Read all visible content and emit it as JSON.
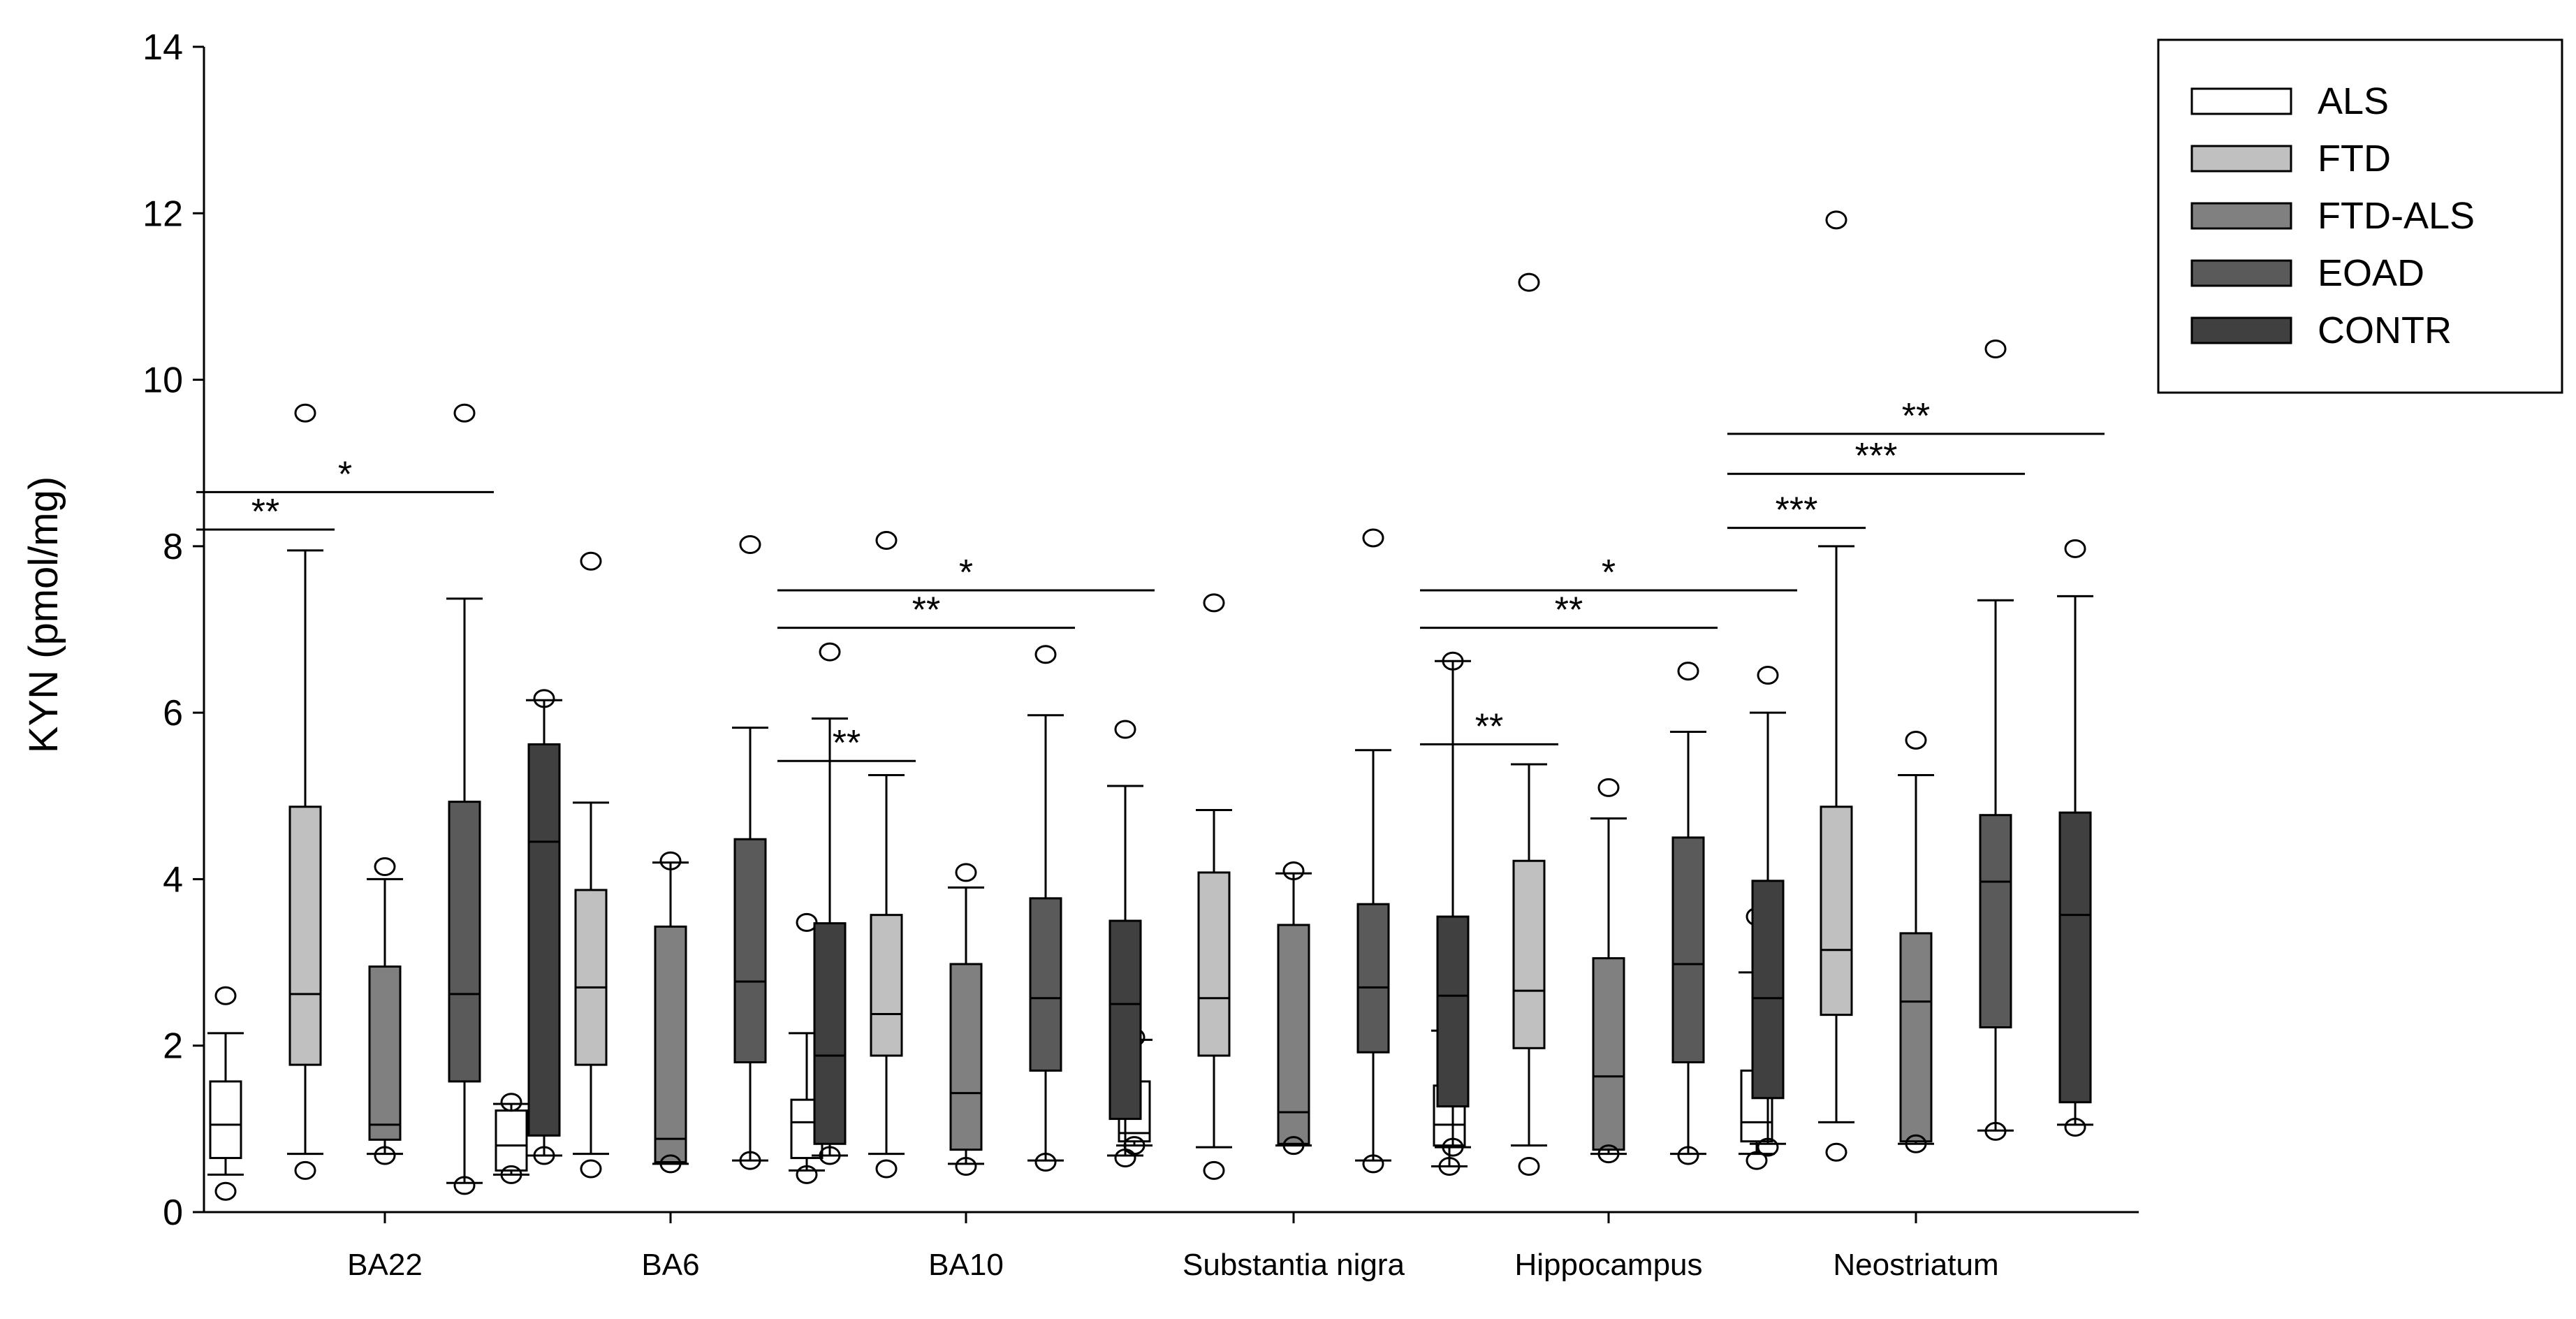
{
  "chart_data": {
    "type": "boxplot",
    "title": "",
    "xlabel": "",
    "ylabel": "KYN (pmol/mg)",
    "ylim": [
      0,
      14
    ],
    "yticks": [
      0,
      2,
      4,
      6,
      8,
      10,
      12,
      14
    ],
    "grid": false,
    "legend_position": "top-right",
    "categories": [
      "BA22",
      "BA6",
      "BA10",
      "Substantia nigra",
      "Hippocampus",
      "Neostriatum"
    ],
    "series": [
      {
        "name": "ALS",
        "color": "#ffffff",
        "boxes": [
          {
            "whisker_low": 0.45,
            "q1": 0.65,
            "median": 1.05,
            "q3": 1.57,
            "whisker_high": 2.15,
            "outliers": [
              2.6,
              0.25
            ]
          },
          {
            "whisker_low": 0.45,
            "q1": 0.5,
            "median": 0.8,
            "q3": 1.22,
            "whisker_high": 1.3,
            "outliers": [
              1.32,
              0.45
            ]
          },
          {
            "whisker_low": 0.5,
            "q1": 0.65,
            "median": 1.08,
            "q3": 1.35,
            "whisker_high": 2.15,
            "outliers": [
              3.48,
              0.45
            ]
          },
          {
            "whisker_low": 0.8,
            "q1": 0.85,
            "median": 0.95,
            "q3": 1.57,
            "whisker_high": 2.07,
            "outliers": [
              2.1,
              0.8
            ]
          },
          {
            "whisker_low": 0.55,
            "q1": 0.8,
            "median": 1.05,
            "q3": 1.52,
            "whisker_high": 2.18,
            "outliers": [
              2.78,
              0.55
            ]
          },
          {
            "whisker_low": 0.7,
            "q1": 0.85,
            "median": 1.08,
            "q3": 1.7,
            "whisker_high": 2.88,
            "outliers": [
              3.55,
              0.62
            ]
          }
        ]
      },
      {
        "name": "FTD",
        "color": "#c0c0c0",
        "boxes": [
          {
            "whisker_low": 0.7,
            "q1": 1.77,
            "median": 2.62,
            "q3": 4.87,
            "whisker_high": 7.95,
            "outliers": [
              9.6,
              0.5
            ]
          },
          {
            "whisker_low": 0.7,
            "q1": 1.77,
            "median": 2.7,
            "q3": 3.87,
            "whisker_high": 4.92,
            "outliers": [
              7.82,
              0.52
            ]
          },
          {
            "whisker_low": 0.7,
            "q1": 1.88,
            "median": 2.38,
            "q3": 3.57,
            "whisker_high": 5.25,
            "outliers": [
              8.07,
              0.52
            ]
          },
          {
            "whisker_low": 0.78,
            "q1": 1.88,
            "median": 2.57,
            "q3": 4.08,
            "whisker_high": 4.83,
            "outliers": [
              7.32,
              0.5
            ]
          },
          {
            "whisker_low": 0.8,
            "q1": 1.97,
            "median": 2.66,
            "q3": 4.22,
            "whisker_high": 5.38,
            "outliers": [
              11.17,
              0.55
            ]
          },
          {
            "whisker_low": 1.08,
            "q1": 2.37,
            "median": 3.15,
            "q3": 4.87,
            "whisker_high": 8.0,
            "outliers": [
              11.92,
              0.72
            ]
          }
        ]
      },
      {
        "name": "FTD-ALS",
        "color": "#808080",
        "boxes": [
          {
            "whisker_low": 0.7,
            "q1": 0.87,
            "median": 1.05,
            "q3": 2.95,
            "whisker_high": 4.0,
            "outliers": [
              4.15,
              0.68
            ]
          },
          {
            "whisker_low": 0.58,
            "q1": 0.6,
            "median": 0.88,
            "q3": 3.43,
            "whisker_high": 4.2,
            "outliers": [
              4.22,
              0.58
            ]
          },
          {
            "whisker_low": 0.58,
            "q1": 0.75,
            "median": 1.43,
            "q3": 2.98,
            "whisker_high": 3.9,
            "outliers": [
              4.08,
              0.55
            ]
          },
          {
            "whisker_low": 0.8,
            "q1": 0.82,
            "median": 1.2,
            "q3": 3.45,
            "whisker_high": 4.07,
            "outliers": [
              4.1,
              0.8
            ]
          },
          {
            "whisker_low": 0.7,
            "q1": 0.75,
            "median": 1.63,
            "q3": 3.05,
            "whisker_high": 4.73,
            "outliers": [
              5.1,
              0.7
            ]
          },
          {
            "whisker_low": 0.82,
            "q1": 0.85,
            "median": 2.53,
            "q3": 3.35,
            "whisker_high": 5.25,
            "outliers": [
              5.67,
              0.82
            ]
          }
        ]
      },
      {
        "name": "EOAD",
        "color": "#5a5a5a",
        "boxes": [
          {
            "whisker_low": 0.35,
            "q1": 1.57,
            "median": 2.62,
            "q3": 4.93,
            "whisker_high": 7.37,
            "outliers": [
              9.6,
              0.32
            ]
          },
          {
            "whisker_low": 0.62,
            "q1": 1.8,
            "median": 2.77,
            "q3": 4.48,
            "whisker_high": 5.82,
            "outliers": [
              8.02,
              0.62
            ]
          },
          {
            "whisker_low": 0.62,
            "q1": 1.7,
            "median": 2.57,
            "q3": 3.77,
            "whisker_high": 5.97,
            "outliers": [
              6.7,
              0.6
            ]
          },
          {
            "whisker_low": 0.62,
            "q1": 1.92,
            "median": 2.7,
            "q3": 3.7,
            "whisker_high": 5.55,
            "outliers": [
              8.1,
              0.58
            ]
          },
          {
            "whisker_low": 0.7,
            "q1": 1.8,
            "median": 2.98,
            "q3": 4.5,
            "whisker_high": 5.77,
            "outliers": [
              6.5,
              0.68
            ]
          },
          {
            "whisker_low": 0.98,
            "q1": 2.22,
            "median": 3.97,
            "q3": 4.77,
            "whisker_high": 7.35,
            "outliers": [
              10.37,
              0.97
            ]
          }
        ]
      },
      {
        "name": "CONTR",
        "color": "#404040",
        "boxes": [
          {
            "whisker_low": 0.68,
            "q1": 0.92,
            "median": 4.45,
            "q3": 5.62,
            "whisker_high": 6.15,
            "outliers": [
              6.17,
              0.68
            ]
          },
          {
            "whisker_low": 0.68,
            "q1": 0.82,
            "median": 1.88,
            "q3": 3.47,
            "whisker_high": 5.93,
            "outliers": [
              6.73,
              0.68
            ]
          },
          {
            "whisker_low": 0.68,
            "q1": 1.12,
            "median": 2.5,
            "q3": 3.5,
            "whisker_high": 5.12,
            "outliers": [
              5.8,
              0.65
            ]
          },
          {
            "whisker_low": 0.78,
            "q1": 1.27,
            "median": 2.6,
            "q3": 3.55,
            "whisker_high": 6.62,
            "outliers": [
              6.62,
              0.78
            ]
          },
          {
            "whisker_low": 0.82,
            "q1": 1.37,
            "median": 2.57,
            "q3": 3.98,
            "whisker_high": 6.0,
            "outliers": [
              6.45,
              0.78
            ]
          },
          {
            "whisker_low": 1.05,
            "q1": 1.32,
            "median": 3.57,
            "q3": 4.8,
            "whisker_high": 7.4,
            "outliers": [
              7.97,
              1.02
            ]
          }
        ]
      }
    ],
    "significance": [
      {
        "category": 0,
        "from": 0,
        "to": 1,
        "y": 8.2,
        "label": "**"
      },
      {
        "category": 0,
        "from": 0,
        "to": 3,
        "y": 8.65,
        "label": "*"
      },
      {
        "category": 2,
        "from": 0,
        "to": 1,
        "y": 5.42,
        "label": "**"
      },
      {
        "category": 2,
        "from": 0,
        "to": 3,
        "y": 7.02,
        "label": "**"
      },
      {
        "category": 2,
        "from": 0,
        "to": 4,
        "y": 7.47,
        "label": "*"
      },
      {
        "category": 4,
        "from": 0,
        "to": 1,
        "y": 5.62,
        "label": "**"
      },
      {
        "category": 4,
        "from": 0,
        "to": 3,
        "y": 7.02,
        "label": "**"
      },
      {
        "category": 4,
        "from": 0,
        "to": 4,
        "y": 7.47,
        "label": "*"
      },
      {
        "category": 5,
        "from": 0,
        "to": 1,
        "y": 8.22,
        "label": "***"
      },
      {
        "category": 5,
        "from": 0,
        "to": 3,
        "y": 8.87,
        "label": "***"
      },
      {
        "category": 5,
        "from": 0,
        "to": 4,
        "y": 9.35,
        "label": "**"
      }
    ]
  }
}
